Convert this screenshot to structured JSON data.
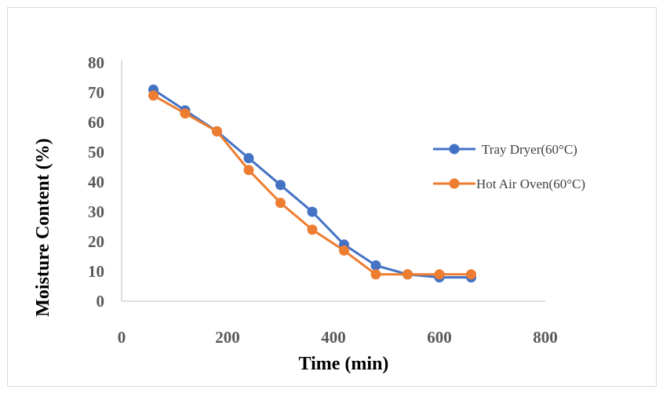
{
  "chart_data": {
    "type": "line",
    "title": "",
    "xlabel": "Time (min)",
    "ylabel": "Moisture Content (%)",
    "xlim": [
      0,
      800
    ],
    "ylim": [
      0,
      80
    ],
    "x_ticks": [
      "0",
      "200",
      "400",
      "600",
      "800"
    ],
    "y_ticks": [
      "0",
      "10",
      "20",
      "30",
      "40",
      "50",
      "60",
      "70",
      "80"
    ],
    "grid": false,
    "legend_position": "right",
    "series": [
      {
        "name": "Tray Dryer(60°C)",
        "color": "#4472c4",
        "x": [
          60,
          120,
          180,
          240,
          300,
          360,
          420,
          480,
          540,
          600,
          660
        ],
        "y": [
          71,
          64,
          57,
          48,
          39,
          30,
          19,
          12,
          9,
          8,
          8
        ]
      },
      {
        "name": "Hot Air Oven(60°C)",
        "color": "#ed7d31",
        "x": [
          60,
          120,
          180,
          240,
          300,
          360,
          420,
          480,
          540,
          600,
          660
        ],
        "y": [
          69,
          63,
          57,
          44,
          33,
          24,
          17,
          9,
          9,
          9,
          9
        ]
      }
    ]
  }
}
